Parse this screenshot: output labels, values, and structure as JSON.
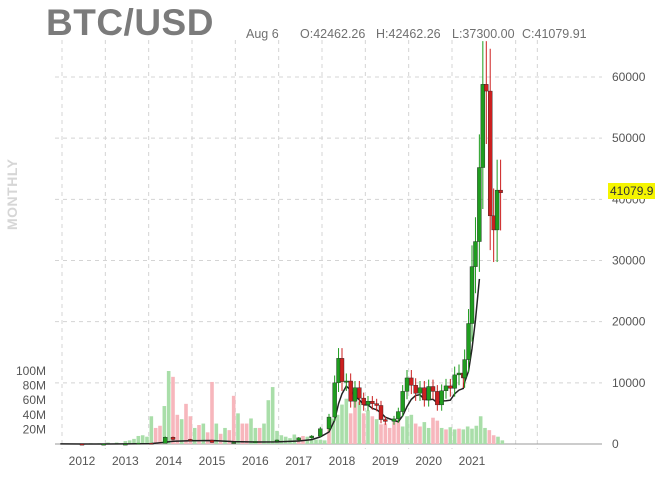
{
  "header": {
    "title": "BTC/USD",
    "date": "Aug 6",
    "open": "O:42462.26",
    "high": "H:42462.26",
    "low": "L:37300.00",
    "close": "C:41079.91"
  },
  "period_label": "MONTHLY",
  "last_price_label": "41079.9",
  "colors": {
    "up": "#1f9d1f",
    "down": "#cc1f1f",
    "vol_up": "#a9dea9",
    "vol_down": "#f7b6bc",
    "grid": "#d4d4d4",
    "text": "#555555",
    "highlight": "#f5f500"
  },
  "chart_data": {
    "type": "candlestick",
    "title": "BTC/USD",
    "x_tick_labels": [
      "2012",
      "2013",
      "2014",
      "2015",
      "2016",
      "2017",
      "2018",
      "2019",
      "2020",
      "2021"
    ],
    "x_range": [
      2011.5,
      2025.0
    ],
    "price_axis": {
      "ticks": [
        0,
        10000,
        20000,
        30000,
        40000,
        50000,
        60000
      ],
      "range": [
        0,
        62000
      ],
      "position": "right"
    },
    "volume_axis": {
      "tick_labels": [
        "20M",
        "40M",
        "60M",
        "80M",
        "100M"
      ],
      "ticks": [
        20,
        40,
        60,
        80,
        100
      ],
      "unit": "M",
      "position": "left"
    },
    "grid": true,
    "last_price": 41079.9,
    "price_series": {
      "name": "BTC/USD",
      "points": [
        {
          "t": 2011.5,
          "p": 10
        },
        {
          "t": 2012.0,
          "p": 6
        },
        {
          "t": 2012.5,
          "p": 8
        },
        {
          "t": 2013.0,
          "p": 15
        },
        {
          "t": 2013.3,
          "p": 140
        },
        {
          "t": 2013.6,
          "p": 120
        },
        {
          "t": 2013.92,
          "p": 1100
        },
        {
          "t": 2014.1,
          "p": 750
        },
        {
          "t": 2014.5,
          "p": 600
        },
        {
          "t": 2015.0,
          "p": 250
        },
        {
          "t": 2015.5,
          "p": 270
        },
        {
          "t": 2016.0,
          "p": 420
        },
        {
          "t": 2016.5,
          "p": 650
        },
        {
          "t": 2017.0,
          "p": 1000
        },
        {
          "t": 2017.3,
          "p": 1300
        },
        {
          "t": 2017.5,
          "p": 2500
        },
        {
          "t": 2017.7,
          "p": 4400
        },
        {
          "t": 2017.83,
          "p": 10000
        },
        {
          "t": 2017.92,
          "p": 14000
        },
        {
          "t": 2018.0,
          "p": 10200
        },
        {
          "t": 2018.1,
          "p": 10300
        },
        {
          "t": 2018.2,
          "p": 7000
        },
        {
          "t": 2018.3,
          "p": 9200
        },
        {
          "t": 2018.4,
          "p": 7500
        },
        {
          "t": 2018.5,
          "p": 6400
        },
        {
          "t": 2018.6,
          "p": 7000
        },
        {
          "t": 2018.7,
          "p": 6600
        },
        {
          "t": 2018.8,
          "p": 6300
        },
        {
          "t": 2018.9,
          "p": 4000
        },
        {
          "t": 2019.0,
          "p": 3700
        },
        {
          "t": 2019.2,
          "p": 4100
        },
        {
          "t": 2019.3,
          "p": 5300
        },
        {
          "t": 2019.4,
          "p": 8600
        },
        {
          "t": 2019.5,
          "p": 10800
        },
        {
          "t": 2019.6,
          "p": 9600
        },
        {
          "t": 2019.7,
          "p": 8300
        },
        {
          "t": 2019.8,
          "p": 9200
        },
        {
          "t": 2019.9,
          "p": 7200
        },
        {
          "t": 2020.0,
          "p": 9400
        },
        {
          "t": 2020.1,
          "p": 8600
        },
        {
          "t": 2020.2,
          "p": 6400
        },
        {
          "t": 2020.3,
          "p": 8700
        },
        {
          "t": 2020.4,
          "p": 9500
        },
        {
          "t": 2020.5,
          "p": 9100
        },
        {
          "t": 2020.6,
          "p": 11300
        },
        {
          "t": 2020.7,
          "p": 11600
        },
        {
          "t": 2020.8,
          "p": 10800
        },
        {
          "t": 2020.83,
          "p": 13800
        },
        {
          "t": 2020.92,
          "p": 19700
        },
        {
          "t": 2021.0,
          "p": 29000
        },
        {
          "t": 2021.08,
          "p": 33100
        },
        {
          "t": 2021.17,
          "p": 45200
        },
        {
          "t": 2021.25,
          "p": 58800
        },
        {
          "t": 2021.33,
          "p": 57700
        },
        {
          "t": 2021.42,
          "p": 37300
        },
        {
          "t": 2021.5,
          "p": 35000
        },
        {
          "t": 2021.58,
          "p": 41500
        },
        {
          "t": 2021.66,
          "p": 41079
        }
      ]
    },
    "volume_series": {
      "name": "Volume",
      "unit": "M",
      "bars": [
        {
          "t": 2012.2,
          "v": 1,
          "up": true
        },
        {
          "t": 2012.4,
          "v": 1,
          "up": true
        },
        {
          "t": 2012.6,
          "v": 2,
          "up": true
        },
        {
          "t": 2012.8,
          "v": 2,
          "up": true
        },
        {
          "t": 2013.0,
          "v": 4,
          "up": true
        },
        {
          "t": 2013.1,
          "v": 5,
          "up": true
        },
        {
          "t": 2013.2,
          "v": 7,
          "up": true
        },
        {
          "t": 2013.3,
          "v": 11,
          "up": true
        },
        {
          "t": 2013.4,
          "v": 12,
          "up": true
        },
        {
          "t": 2013.5,
          "v": 10,
          "up": true
        },
        {
          "t": 2013.6,
          "v": 38,
          "up": true
        },
        {
          "t": 2013.7,
          "v": 22,
          "up": false
        },
        {
          "t": 2013.8,
          "v": 25,
          "up": false
        },
        {
          "t": 2013.9,
          "v": 52,
          "up": true
        },
        {
          "t": 2014.0,
          "v": 100,
          "up": true
        },
        {
          "t": 2014.1,
          "v": 92,
          "up": false
        },
        {
          "t": 2014.2,
          "v": 40,
          "up": false
        },
        {
          "t": 2014.3,
          "v": 34,
          "up": true
        },
        {
          "t": 2014.4,
          "v": 55,
          "up": false
        },
        {
          "t": 2014.5,
          "v": 38,
          "up": false
        },
        {
          "t": 2014.6,
          "v": 22,
          "up": true
        },
        {
          "t": 2014.7,
          "v": 26,
          "up": false
        },
        {
          "t": 2014.8,
          "v": 28,
          "up": true
        },
        {
          "t": 2014.9,
          "v": 16,
          "up": false
        },
        {
          "t": 2015.0,
          "v": 85,
          "up": false
        },
        {
          "t": 2015.1,
          "v": 28,
          "up": true
        },
        {
          "t": 2015.2,
          "v": 14,
          "up": false
        },
        {
          "t": 2015.3,
          "v": 22,
          "up": true
        },
        {
          "t": 2015.4,
          "v": 19,
          "up": false
        },
        {
          "t": 2015.5,
          "v": 66,
          "up": false
        },
        {
          "t": 2015.6,
          "v": 42,
          "up": true
        },
        {
          "t": 2015.7,
          "v": 28,
          "up": false
        },
        {
          "t": 2015.8,
          "v": 28,
          "up": false
        },
        {
          "t": 2015.9,
          "v": 35,
          "up": true
        },
        {
          "t": 2016.0,
          "v": 22,
          "up": true
        },
        {
          "t": 2016.1,
          "v": 22,
          "up": false
        },
        {
          "t": 2016.2,
          "v": 28,
          "up": true
        },
        {
          "t": 2016.3,
          "v": 60,
          "up": true
        },
        {
          "t": 2016.4,
          "v": 78,
          "up": true
        },
        {
          "t": 2016.5,
          "v": 18,
          "up": true
        },
        {
          "t": 2016.6,
          "v": 12,
          "up": true
        },
        {
          "t": 2016.7,
          "v": 10,
          "up": true
        },
        {
          "t": 2016.8,
          "v": 8,
          "up": true
        },
        {
          "t": 2016.9,
          "v": 13,
          "up": true
        },
        {
          "t": 2017.0,
          "v": 9,
          "up": false
        },
        {
          "t": 2017.1,
          "v": 11,
          "up": false
        },
        {
          "t": 2017.2,
          "v": 10,
          "up": true
        },
        {
          "t": 2017.3,
          "v": 6,
          "up": true
        },
        {
          "t": 2017.4,
          "v": 6,
          "up": true
        },
        {
          "t": 2017.5,
          "v": 6,
          "up": true
        },
        {
          "t": 2017.6,
          "v": 5,
          "up": true
        },
        {
          "t": 2017.7,
          "v": 25,
          "up": false
        },
        {
          "t": 2017.8,
          "v": 35,
          "up": true
        },
        {
          "t": 2017.9,
          "v": 40,
          "up": true
        },
        {
          "t": 2018.0,
          "v": 54,
          "up": true
        },
        {
          "t": 2018.1,
          "v": 62,
          "up": true
        },
        {
          "t": 2018.2,
          "v": 42,
          "up": false
        },
        {
          "t": 2018.3,
          "v": 60,
          "up": false
        },
        {
          "t": 2018.4,
          "v": 58,
          "up": true
        },
        {
          "t": 2018.5,
          "v": 42,
          "up": false
        },
        {
          "t": 2018.6,
          "v": 46,
          "up": true
        },
        {
          "t": 2018.7,
          "v": 38,
          "up": false
        },
        {
          "t": 2018.8,
          "v": 34,
          "up": true
        },
        {
          "t": 2018.9,
          "v": 27,
          "up": false
        },
        {
          "t": 2019.0,
          "v": 28,
          "up": false
        },
        {
          "t": 2019.1,
          "v": 22,
          "up": false
        },
        {
          "t": 2019.2,
          "v": 30,
          "up": false
        },
        {
          "t": 2019.3,
          "v": 33,
          "up": false
        },
        {
          "t": 2019.4,
          "v": 24,
          "up": true
        },
        {
          "t": 2019.5,
          "v": 38,
          "up": true
        },
        {
          "t": 2019.6,
          "v": 40,
          "up": true
        },
        {
          "t": 2019.7,
          "v": 28,
          "up": false
        },
        {
          "t": 2019.8,
          "v": 24,
          "up": false
        },
        {
          "t": 2019.9,
          "v": 30,
          "up": true
        },
        {
          "t": 2020.0,
          "v": 22,
          "up": true
        },
        {
          "t": 2020.1,
          "v": 36,
          "up": false
        },
        {
          "t": 2020.2,
          "v": 32,
          "up": false
        },
        {
          "t": 2020.3,
          "v": 22,
          "up": true
        },
        {
          "t": 2020.4,
          "v": 20,
          "up": false
        },
        {
          "t": 2020.5,
          "v": 23,
          "up": true
        },
        {
          "t": 2020.6,
          "v": 20,
          "up": true
        },
        {
          "t": 2020.7,
          "v": 21,
          "up": false
        },
        {
          "t": 2020.8,
          "v": 20,
          "up": true
        },
        {
          "t": 2020.9,
          "v": 24,
          "up": true
        },
        {
          "t": 2021.0,
          "v": 21,
          "up": true
        },
        {
          "t": 2021.1,
          "v": 25,
          "up": true
        },
        {
          "t": 2021.2,
          "v": 38,
          "up": true
        },
        {
          "t": 2021.3,
          "v": 22,
          "up": true
        },
        {
          "t": 2021.4,
          "v": 19,
          "up": false
        },
        {
          "t": 2021.5,
          "v": 12,
          "up": false
        },
        {
          "t": 2021.6,
          "v": 10,
          "up": true
        },
        {
          "t": 2021.7,
          "v": 5,
          "up": true
        }
      ]
    }
  }
}
